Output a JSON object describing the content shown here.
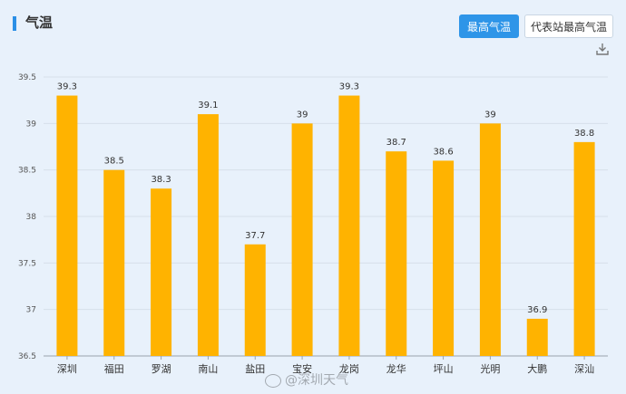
{
  "header": {
    "title": "气温",
    "btn_max": "最高气温",
    "btn_station": "代表站最高气温"
  },
  "icons": {
    "download": "download-icon",
    "weibo": "weibo-icon"
  },
  "watermark": "@深圳天气",
  "colors": {
    "bar": "#ffb300",
    "accent": "#2e95e8"
  },
  "chart_data": {
    "type": "bar",
    "title": "",
    "xlabel": "",
    "ylabel": "",
    "ylim": [
      36.5,
      39.5
    ],
    "yticks": [
      "36.5",
      "37",
      "37.5",
      "38",
      "38.5",
      "39",
      "39.5"
    ],
    "grid": true,
    "categories": [
      "深圳",
      "福田",
      "罗湖",
      "南山",
      "盐田",
      "宝安",
      "龙岗",
      "龙华",
      "坪山",
      "光明",
      "大鹏",
      "深汕"
    ],
    "values": [
      39.3,
      38.5,
      38.3,
      39.1,
      37.7,
      39,
      39.3,
      38.7,
      38.6,
      39,
      36.9,
      38.8
    ],
    "labels": [
      "39.3",
      "38.5",
      "38.3",
      "39.1",
      "37.7",
      "39",
      "39.3",
      "38.7",
      "38.6",
      "39",
      "36.9",
      "38.8"
    ]
  }
}
